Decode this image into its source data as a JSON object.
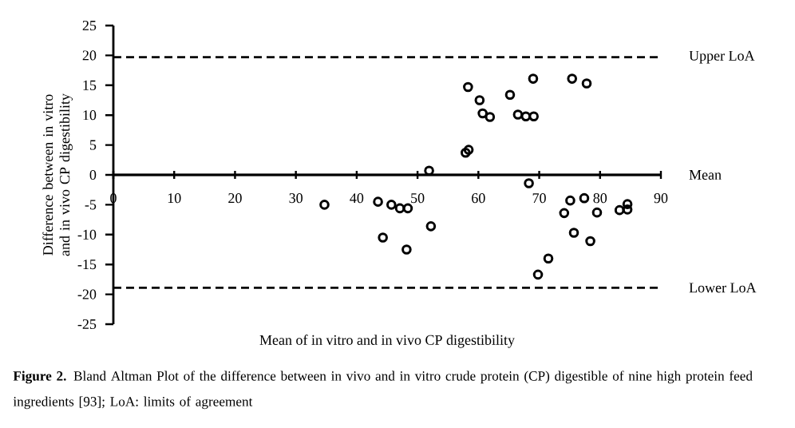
{
  "chart_data": {
    "type": "scatter",
    "xlabel": "Mean of in vitro and  in vivo CP digestibility",
    "ylabel": "Difference between in vitro and in vivo CP digestibility",
    "annotations": [
      "**Figure 2.** Bland Altman Plot of the difference between in vivo and in vitro crude protein (CP) digestible of nine high protein feed ingredients [93]; LoA: limits of agreement"
    ],
    "x": [
      34.7,
      43.5,
      45.7,
      47.1,
      48.4,
      44.3,
      48.2,
      51.9,
      52.2,
      57.9,
      58.4,
      58.3,
      60.2,
      60.7,
      61.9,
      65.2,
      66.5,
      67.8,
      69.1,
      69.0,
      68.3,
      69.8,
      71.5,
      74.1,
      75.1,
      75.4,
      75.7,
      77.4,
      77.8,
      78.4,
      79.5,
      83.2,
      84.5,
      84.5
    ],
    "series": [
      {
        "color": "#000000",
        "values": [
          -5.0,
          -4.5,
          -5.0,
          -5.6,
          -5.6,
          -10.5,
          -12.5,
          0.7,
          -8.6,
          3.7,
          4.2,
          14.7,
          12.5,
          10.3,
          9.7,
          13.4,
          10.1,
          9.8,
          9.8,
          16.1,
          -1.4,
          -16.7,
          -14.0,
          -6.4,
          -4.3,
          16.1,
          -9.7,
          -3.9,
          15.3,
          -11.1,
          -6.3,
          -5.9,
          -4.9,
          -5.8
        ]
      }
    ],
    "marker": "circle",
    "xlim": [
      0,
      90
    ],
    "ylim": [
      -25,
      25
    ],
    "xticks": [
      0,
      10,
      20,
      30,
      40,
      50,
      60,
      70,
      80,
      90
    ],
    "yticks": [
      -25,
      -20,
      -15,
      -10,
      -5,
      0,
      5,
      10,
      15,
      20,
      25
    ],
    "ref_lines": [
      {
        "axis": "y",
        "value": 19.7,
        "label": "Upper LoA",
        "line_style": "dashed"
      },
      {
        "axis": "y",
        "value": 0,
        "label": "Mean",
        "line_style": "solid"
      },
      {
        "axis": "y",
        "value": -18.9,
        "label": "Lower LoA",
        "line_style": "dashed"
      }
    ],
    "grid": false
  }
}
